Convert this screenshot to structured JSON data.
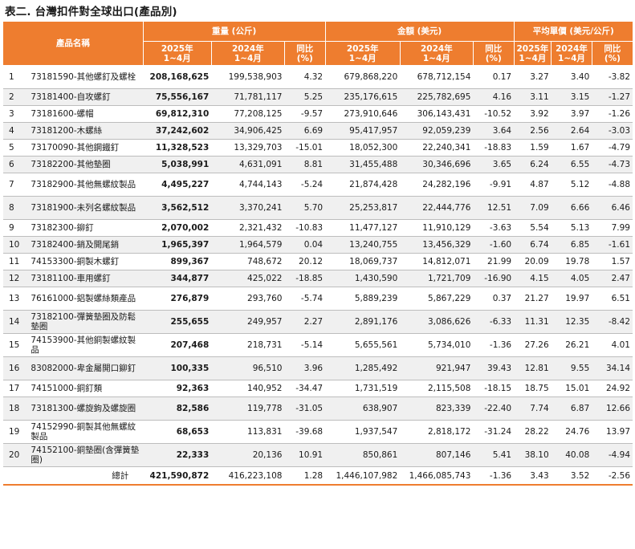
{
  "title": "表二. 台灣扣件對全球出口(產品別)",
  "header": {
    "product_name": "產品名稱",
    "groups": [
      "重量 (公斤)",
      "金額 (美元)",
      "平均單價 (美元/公斤)"
    ],
    "sub": [
      "2025年\n1~4月",
      "2024年\n1~4月",
      "同比\n(%)",
      "2025年\n1~4月",
      "2024年\n1~4月",
      "同比\n(%)",
      "2025年\n1~4月",
      "2024年\n1~4月",
      "同比\n(%)"
    ]
  },
  "rows": [
    {
      "no": "1",
      "name": "73181590-其他螺釘及螺栓",
      "w25": "208,168,625",
      "w24": "199,538,903",
      "wy": "4.32",
      "v25": "679,868,220",
      "v24": "678,712,154",
      "vy": "0.17",
      "p25": "3.27",
      "p24": "3.40",
      "py": "-3.82"
    },
    {
      "no": "2",
      "name": "73181400-自攻螺釘",
      "w25": "75,556,167",
      "w24": "71,781,117",
      "wy": "5.25",
      "v25": "235,176,615",
      "v24": "225,782,695",
      "vy": "4.16",
      "p25": "3.11",
      "p24": "3.15",
      "py": "-1.27"
    },
    {
      "no": "3",
      "name": "73181600-螺帽",
      "w25": "69,812,310",
      "w24": "77,208,125",
      "wy": "-9.57",
      "v25": "273,910,646",
      "v24": "306,143,431",
      "vy": "-10.52",
      "p25": "3.92",
      "p24": "3.97",
      "py": "-1.26"
    },
    {
      "no": "4",
      "name": "73181200-木螺絲",
      "w25": "37,242,602",
      "w24": "34,906,425",
      "wy": "6.69",
      "v25": "95,417,957",
      "v24": "92,059,239",
      "vy": "3.64",
      "p25": "2.56",
      "p24": "2.64",
      "py": "-3.03"
    },
    {
      "no": "5",
      "name": "73170090-其他鋼鐵釘",
      "w25": "11,328,523",
      "w24": "13,329,703",
      "wy": "-15.01",
      "v25": "18,052,300",
      "v24": "22,240,341",
      "vy": "-18.83",
      "p25": "1.59",
      "p24": "1.67",
      "py": "-4.79"
    },
    {
      "no": "6",
      "name": "73182200-其他墊圈",
      "w25": "5,038,991",
      "w24": "4,631,091",
      "wy": "8.81",
      "v25": "31,455,488",
      "v24": "30,346,696",
      "vy": "3.65",
      "p25": "6.24",
      "p24": "6.55",
      "py": "-4.73"
    },
    {
      "no": "7",
      "name": "73182900-其他無螺紋製品",
      "w25": "4,495,227",
      "w24": "4,744,143",
      "wy": "-5.24",
      "v25": "21,874,428",
      "v24": "24,282,196",
      "vy": "-9.91",
      "p25": "4.87",
      "p24": "5.12",
      "py": "-4.88"
    },
    {
      "no": "8",
      "name": "73181900-未列名螺紋製品",
      "w25": "3,562,512",
      "w24": "3,370,241",
      "wy": "5.70",
      "v25": "25,253,817",
      "v24": "22,444,776",
      "vy": "12.51",
      "p25": "7.09",
      "p24": "6.66",
      "py": "6.46"
    },
    {
      "no": "9",
      "name": "73182300-鉚釘",
      "w25": "2,070,002",
      "w24": "2,321,432",
      "wy": "-10.83",
      "v25": "11,477,127",
      "v24": "11,910,129",
      "vy": "-3.63",
      "p25": "5.54",
      "p24": "5.13",
      "py": "7.99"
    },
    {
      "no": "10",
      "name": "73182400-銷及開尾銷",
      "w25": "1,965,397",
      "w24": "1,964,579",
      "wy": "0.04",
      "v25": "13,240,755",
      "v24": "13,456,329",
      "vy": "-1.60",
      "p25": "6.74",
      "p24": "6.85",
      "py": "-1.61"
    },
    {
      "no": "11",
      "name": "74153300-銅製木螺釘",
      "w25": "899,367",
      "w24": "748,672",
      "wy": "20.12",
      "v25": "18,069,737",
      "v24": "14,812,071",
      "vy": "21.99",
      "p25": "20.09",
      "p24": "19.78",
      "py": "1.57"
    },
    {
      "no": "12",
      "name": "73181100-車用螺釘",
      "w25": "344,877",
      "w24": "425,022",
      "wy": "-18.85",
      "v25": "1,430,590",
      "v24": "1,721,709",
      "vy": "-16.90",
      "p25": "4.15",
      "p24": "4.05",
      "py": "2.47"
    },
    {
      "no": "13",
      "name": "76161000-鋁製螺絲類產品",
      "w25": "276,879",
      "w24": "293,760",
      "wy": "-5.74",
      "v25": "5,889,239",
      "v24": "5,867,229",
      "vy": "0.37",
      "p25": "21.27",
      "p24": "19.97",
      "py": "6.51"
    },
    {
      "no": "14",
      "name": "73182100-彈簧墊圈及防鬆墊圈",
      "w25": "255,655",
      "w24": "249,957",
      "wy": "2.27",
      "v25": "2,891,176",
      "v24": "3,086,626",
      "vy": "-6.33",
      "p25": "11.31",
      "p24": "12.35",
      "py": "-8.42"
    },
    {
      "no": "15",
      "name": "74153900-其他銅製螺紋製品",
      "w25": "207,468",
      "w24": "218,731",
      "wy": "-5.14",
      "v25": "5,655,561",
      "v24": "5,734,010",
      "vy": "-1.36",
      "p25": "27.26",
      "p24": "26.21",
      "py": "4.01"
    },
    {
      "no": "16",
      "name": "83082000-卑金屬開口鉚釘",
      "w25": "100,335",
      "w24": "96,510",
      "wy": "3.96",
      "v25": "1,285,492",
      "v24": "921,947",
      "vy": "39.43",
      "p25": "12.81",
      "p24": "9.55",
      "py": "34.14"
    },
    {
      "no": "17",
      "name": "74151000-銅釘類",
      "w25": "92,363",
      "w24": "140,952",
      "wy": "-34.47",
      "v25": "1,731,519",
      "v24": "2,115,508",
      "vy": "-18.15",
      "p25": "18.75",
      "p24": "15.01",
      "py": "24.92"
    },
    {
      "no": "18",
      "name": "73181300-螺旋鉤及螺旋圈",
      "w25": "82,586",
      "w24": "119,778",
      "wy": "-31.05",
      "v25": "638,907",
      "v24": "823,339",
      "vy": "-22.40",
      "p25": "7.74",
      "p24": "6.87",
      "py": "12.66"
    },
    {
      "no": "19",
      "name": "74152990-銅製其他無螺紋製品",
      "w25": "68,653",
      "w24": "113,831",
      "wy": "-39.68",
      "v25": "1,937,547",
      "v24": "2,818,172",
      "vy": "-31.24",
      "p25": "28.22",
      "p24": "24.76",
      "py": "13.97"
    },
    {
      "no": "20",
      "name": "74152100-銅墊圈(含彈簧墊圈)",
      "w25": "22,333",
      "w24": "20,136",
      "wy": "10.91",
      "v25": "850,861",
      "v24": "807,146",
      "vy": "5.41",
      "p25": "38.10",
      "p24": "40.08",
      "py": "-4.94"
    }
  ],
  "total": {
    "label": "總計",
    "w25": "421,590,872",
    "w24": "416,223,108",
    "wy": "1.28",
    "v25": "1,446,107,982",
    "v24": "1,466,085,743",
    "vy": "-1.36",
    "p25": "3.43",
    "p24": "3.52",
    "py": "-2.56"
  }
}
